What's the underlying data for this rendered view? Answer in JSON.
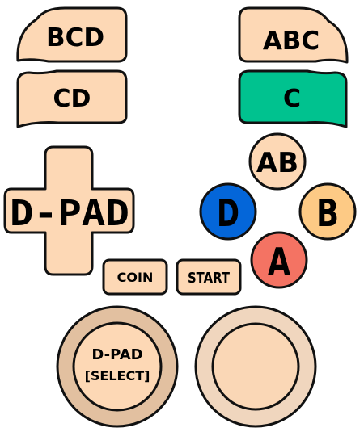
{
  "colors": {
    "button_fill": "#fdd8b5",
    "outline": "#111111",
    "c_button": "#00c28f",
    "d_button": "#0466d9",
    "b_button": "#fdca85",
    "a_button": "#f47363",
    "analog_left_outer": "#e2c0a0",
    "analog_left_inner": "#fdd8b5",
    "analog_right_outer": "#f0d6be",
    "analog_right_inner": "#fad7b6"
  },
  "shoulders": {
    "left_top": "BCD",
    "left_bottom": "CD",
    "right_top": "ABC",
    "right_bottom": "C"
  },
  "dpad": {
    "label": "D-PAD"
  },
  "face_buttons": {
    "ab": "AB",
    "d": "D",
    "b": "B",
    "a": "A"
  },
  "system_buttons": {
    "coin": "COIN",
    "start": "START"
  },
  "analog": {
    "left_line1": "D-PAD",
    "left_line2": "[SELECT]"
  },
  "icons": {
    "dpad": "dpad-cross-icon"
  }
}
